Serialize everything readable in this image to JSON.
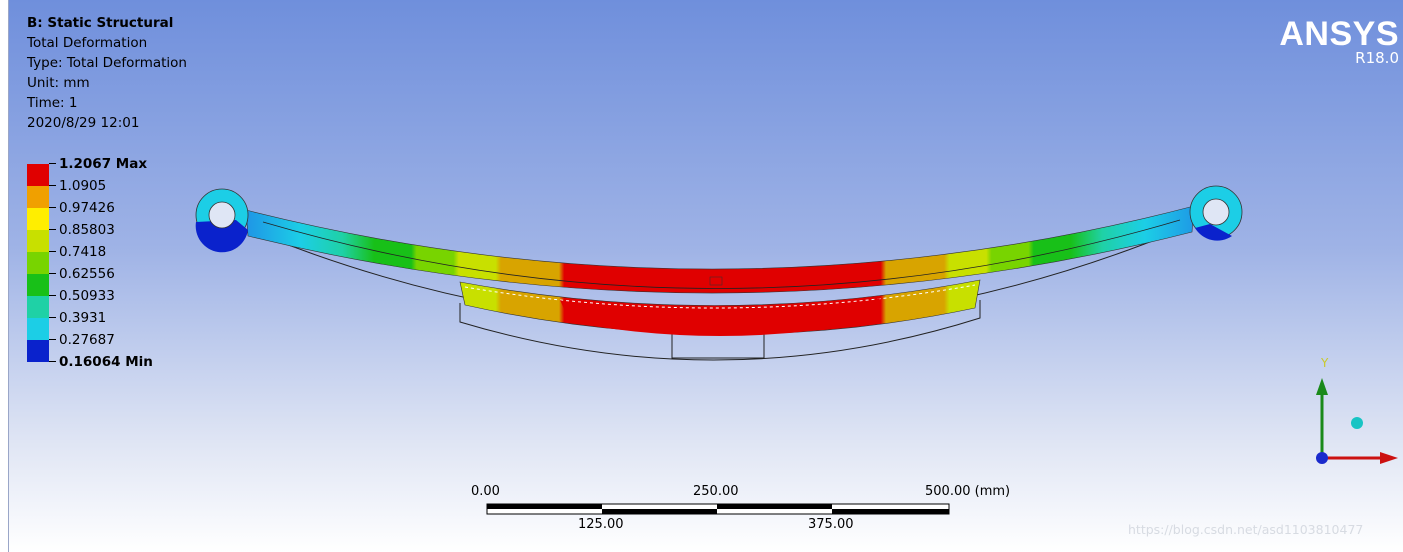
{
  "info": {
    "analysis": "B: Static Structural",
    "result": "Total Deformation",
    "type": "Type: Total Deformation",
    "unit": "Unit: mm",
    "time": "Time: 1",
    "date": "2020/8/29 12:01"
  },
  "legend": [
    {
      "label": "1.2067 Max",
      "color": "#e00000",
      "bold": true
    },
    {
      "label": "1.0905",
      "color": "#f0a000",
      "bold": false
    },
    {
      "label": "0.97426",
      "color": "#ffee00",
      "bold": false
    },
    {
      "label": "0.85803",
      "color": "#c8e000",
      "bold": false
    },
    {
      "label": "0.7418",
      "color": "#78d400",
      "bold": false
    },
    {
      "label": "0.62556",
      "color": "#18c018",
      "bold": false
    },
    {
      "label": "0.50933",
      "color": "#1fd1a6",
      "bold": false
    },
    {
      "label": "0.3931",
      "color": "#1ccee6",
      "bold": false
    },
    {
      "label": "0.27687",
      "color": "#1f97e6",
      "bold": false
    },
    {
      "label": "0.16064 Min",
      "color": "#0a22cc",
      "bold": true
    }
  ],
  "brand": {
    "name": "ANSYS",
    "version": "R18.0"
  },
  "scale_bar": {
    "top_labels": [
      "0.00",
      "250.00",
      "500.00 (mm)"
    ],
    "bottom_labels": [
      "125.00",
      "375.00"
    ]
  },
  "triad": {
    "y_label": "Y"
  },
  "watermark": "https://blog.csdn.net/asd1103810477"
}
